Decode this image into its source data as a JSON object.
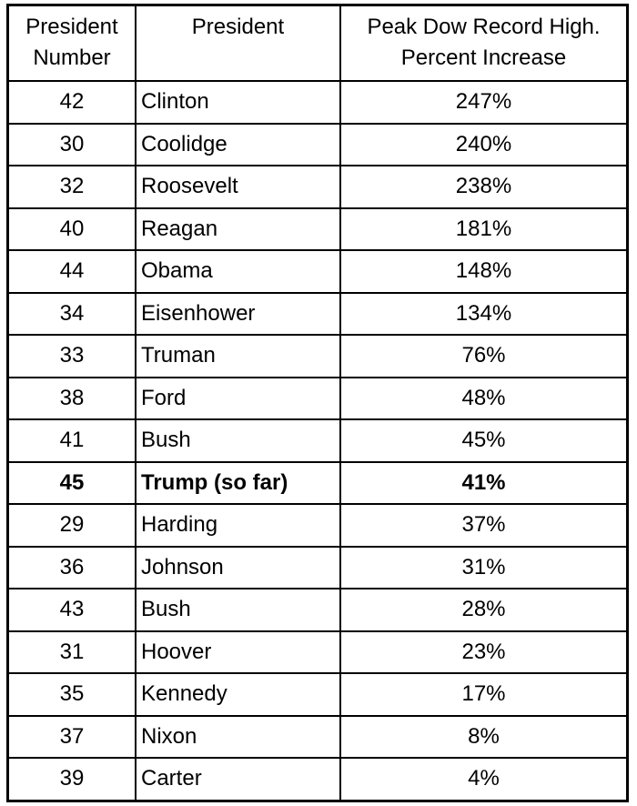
{
  "colors": {
    "border": "#000000",
    "text": "#000000",
    "background": "#ffffff"
  },
  "table": {
    "header": {
      "col1_line1": "President",
      "col1_line2": "Number",
      "col2_line1": "President",
      "col3_line1": "Peak Dow Record High.",
      "col3_line2": "Percent Increase"
    },
    "rows": [
      {
        "number": "42",
        "name": "Clinton",
        "value": "247%",
        "bold": false
      },
      {
        "number": "30",
        "name": "Coolidge",
        "value": "240%",
        "bold": false
      },
      {
        "number": "32",
        "name": "Roosevelt",
        "value": "238%",
        "bold": false
      },
      {
        "number": "40",
        "name": "Reagan",
        "value": "181%",
        "bold": false
      },
      {
        "number": "44",
        "name": "Obama",
        "value": "148%",
        "bold": false
      },
      {
        "number": "34",
        "name": "Eisenhower",
        "value": "134%",
        "bold": false
      },
      {
        "number": "33",
        "name": "Truman",
        "value": "76%",
        "bold": false
      },
      {
        "number": "38",
        "name": "Ford",
        "value": "48%",
        "bold": false
      },
      {
        "number": "41",
        "name": "Bush",
        "value": "45%",
        "bold": false
      },
      {
        "number": "45",
        "name": "Trump (so far)",
        "value": "41%",
        "bold": true
      },
      {
        "number": "29",
        "name": "Harding",
        "value": "37%",
        "bold": false
      },
      {
        "number": "36",
        "name": "Johnson",
        "value": "31%",
        "bold": false
      },
      {
        "number": "43",
        "name": "Bush",
        "value": "28%",
        "bold": false
      },
      {
        "number": "31",
        "name": "Hoover",
        "value": "23%",
        "bold": false
      },
      {
        "number": "35",
        "name": "Kennedy",
        "value": "17%",
        "bold": false
      },
      {
        "number": "37",
        "name": "Nixon",
        "value": "8%",
        "bold": false
      },
      {
        "number": "39",
        "name": "Carter",
        "value": "4%",
        "bold": false
      }
    ]
  },
  "chart_data": {
    "type": "table",
    "title": "",
    "columns": [
      "President Number",
      "President",
      "Peak Dow Record High. Percent Increase"
    ],
    "rows": [
      [
        42,
        "Clinton",
        "247%"
      ],
      [
        30,
        "Coolidge",
        "240%"
      ],
      [
        32,
        "Roosevelt",
        "238%"
      ],
      [
        40,
        "Reagan",
        "181%"
      ],
      [
        44,
        "Obama",
        "148%"
      ],
      [
        34,
        "Eisenhower",
        "134%"
      ],
      [
        33,
        "Truman",
        "76%"
      ],
      [
        38,
        "Ford",
        "48%"
      ],
      [
        41,
        "Bush",
        "45%"
      ],
      [
        45,
        "Trump (so far)",
        "41%"
      ],
      [
        29,
        "Harding",
        "37%"
      ],
      [
        36,
        "Johnson",
        "31%"
      ],
      [
        43,
        "Bush",
        "28%"
      ],
      [
        31,
        "Hoover",
        "23%"
      ],
      [
        35,
        "Kennedy",
        "17%"
      ],
      [
        37,
        "Nixon",
        "8%"
      ],
      [
        39,
        "Carter",
        "4%"
      ]
    ],
    "percent_increase_values": [
      247,
      240,
      238,
      181,
      148,
      134,
      76,
      48,
      45,
      41,
      37,
      31,
      28,
      23,
      17,
      8,
      4
    ],
    "emphasized_row": "Trump (so far)",
    "layout": {
      "sort_order": "descending by percent increase",
      "column_alignment": [
        "center",
        "left",
        "center"
      ],
      "grid": "full borders, black on white"
    }
  }
}
